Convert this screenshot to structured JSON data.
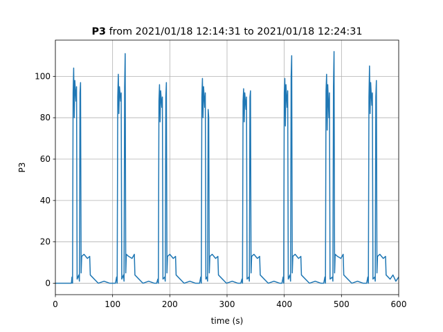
{
  "chart_data": {
    "type": "line",
    "title_bold": "P3",
    "title": "from 2021/01/18 12:14:31 to 2021/01/18 12:24:31",
    "xlabel": "time (s)",
    "ylabel": "P3",
    "xlim": [
      0,
      600
    ],
    "ylim": [
      -5.5,
      117.5
    ],
    "xticks": [
      0,
      100,
      200,
      300,
      400,
      500,
      600
    ],
    "yticks": [
      0,
      20,
      40,
      60,
      80,
      100
    ],
    "grid": true,
    "color": "#1f77b4",
    "x": [
      0,
      20,
      28,
      29,
      30,
      31,
      32,
      33,
      34,
      36,
      37,
      38,
      41,
      42,
      43,
      44,
      45,
      46,
      50,
      56,
      60,
      61,
      68,
      75,
      85,
      95,
      105,
      107,
      108,
      109,
      110,
      111,
      112,
      114,
      115,
      116,
      119,
      120,
      121,
      122,
      123,
      124,
      128,
      134,
      138,
      139,
      146,
      153,
      163,
      173,
      177,
      179,
      180,
      181,
      182,
      183,
      184,
      186,
      187,
      188,
      191,
      192,
      193,
      194,
      195,
      196,
      200,
      206,
      210,
      211,
      218,
      225,
      235,
      245,
      252,
      254,
      255,
      256,
      257,
      258,
      259,
      261,
      262,
      263,
      265,
      266,
      267,
      268,
      269,
      270,
      274,
      280,
      284,
      285,
      292,
      299,
      309,
      319,
      324,
      326,
      327,
      328,
      329,
      330,
      331,
      333,
      334,
      335,
      338,
      339,
      340,
      341,
      342,
      343,
      347,
      353,
      357,
      358,
      365,
      372,
      382,
      392,
      396,
      398,
      399,
      400,
      401,
      402,
      403,
      405,
      406,
      407,
      410,
      411,
      412,
      413,
      414,
      415,
      419,
      425,
      429,
      430,
      437,
      444,
      454,
      464,
      469,
      471,
      472,
      473,
      474,
      475,
      476,
      478,
      479,
      480,
      484,
      485,
      486,
      487,
      488,
      489,
      493,
      499,
      503,
      504,
      511,
      518,
      528,
      538,
      544,
      546,
      547,
      548,
      549,
      550,
      551,
      553,
      554,
      555,
      558,
      559,
      560,
      561,
      562,
      563,
      567,
      573,
      577,
      578,
      585,
      590,
      595,
      600
    ],
    "values": [
      0,
      0,
      0,
      3,
      0,
      92,
      104,
      80,
      98,
      88,
      95,
      2,
      4,
      1,
      92,
      97,
      5,
      13,
      14,
      12,
      13,
      4,
      2,
      0,
      1,
      0,
      0,
      3,
      0,
      90,
      101,
      82,
      95,
      88,
      92,
      2,
      4,
      1,
      95,
      111,
      5,
      14,
      13,
      12,
      14,
      4,
      2,
      0,
      1,
      0,
      0,
      2,
      0,
      88,
      96,
      78,
      93,
      85,
      90,
      2,
      3,
      1,
      90,
      97,
      5,
      13,
      14,
      12,
      13,
      4,
      2,
      0,
      1,
      0,
      0,
      3,
      0,
      90,
      99,
      80,
      95,
      85,
      92,
      2,
      3,
      1,
      84,
      80,
      5,
      13,
      14,
      12,
      13,
      4,
      2,
      0,
      1,
      0,
      0,
      2,
      0,
      88,
      94,
      78,
      92,
      84,
      90,
      2,
      3,
      1,
      90,
      93,
      5,
      13,
      14,
      12,
      13,
      4,
      2,
      0,
      1,
      0,
      0,
      3,
      0,
      92,
      99,
      76,
      96,
      85,
      93,
      2,
      4,
      1,
      100,
      110,
      5,
      13,
      14,
      12,
      13,
      4,
      2,
      0,
      1,
      0,
      0,
      3,
      0,
      93,
      101,
      74,
      96,
      80,
      92,
      2,
      3,
      1,
      95,
      112,
      5,
      14,
      13,
      12,
      14,
      4,
      2,
      0,
      1,
      0,
      0,
      3,
      0,
      90,
      105,
      82,
      97,
      86,
      92,
      2,
      3,
      1,
      90,
      98,
      5,
      13,
      14,
      12,
      13,
      4,
      2,
      4,
      1,
      3
    ]
  }
}
